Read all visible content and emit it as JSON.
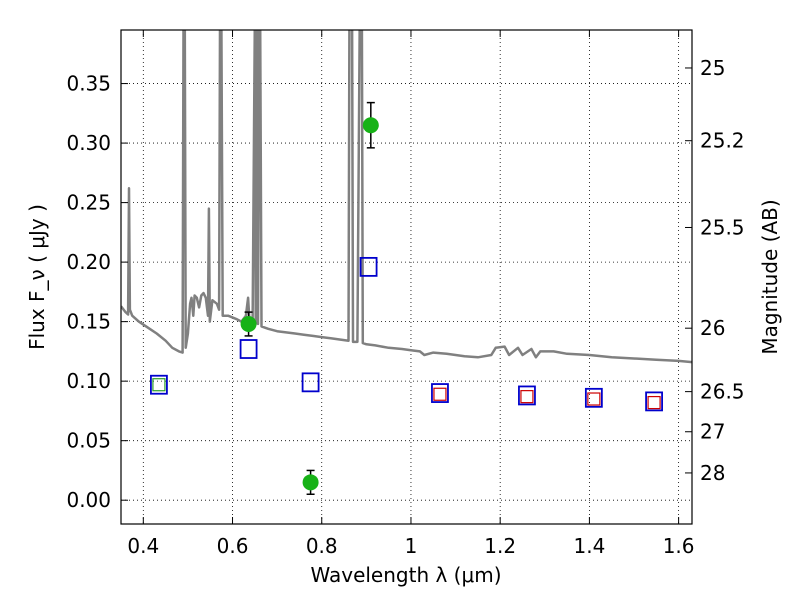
{
  "chart_data": {
    "type": "scatter",
    "xlabel": "Wavelength  λ (μm)",
    "ylabel": "Flux  F_ν  ( μJy )",
    "ylabel_right": "Magnitude (AB)",
    "xlim": [
      0.35,
      1.63
    ],
    "ylim": [
      -0.02,
      0.395
    ],
    "grid": true,
    "x_ticks": [
      0.4,
      0.6,
      0.8,
      1.0,
      1.2,
      1.4,
      1.6
    ],
    "x_tick_labels": [
      "0.4",
      "0.6",
      "0.8",
      "1",
      "1.2",
      "1.4",
      "1.6"
    ],
    "y_ticks": [
      0.0,
      0.05,
      0.1,
      0.15,
      0.2,
      0.25,
      0.3,
      0.35
    ],
    "y_tick_labels": [
      "0.00",
      "0.05",
      "0.10",
      "0.15",
      "0.20",
      "0.25",
      "0.30",
      "0.35"
    ],
    "right_ticks": [
      {
        "label": "25",
        "flux": 0.3631
      },
      {
        "label": "25.2",
        "flux": 0.302
      },
      {
        "label": "25.5",
        "flux": 0.2291
      },
      {
        "label": "26",
        "flux": 0.1445
      },
      {
        "label": "26.5",
        "flux": 0.0912
      },
      {
        "label": "27",
        "flux": 0.0575
      },
      {
        "label": "28",
        "flux": 0.0229
      }
    ],
    "series": [
      {
        "kind": "spectrum",
        "color": "#808080",
        "points": [
          [
            0.35,
            0.163
          ],
          [
            0.36,
            0.158
          ],
          [
            0.366,
            0.156
          ],
          [
            0.368,
            0.262
          ],
          [
            0.37,
            0.16
          ],
          [
            0.375,
            0.155
          ],
          [
            0.39,
            0.15
          ],
          [
            0.41,
            0.145
          ],
          [
            0.43,
            0.14
          ],
          [
            0.45,
            0.134
          ],
          [
            0.465,
            0.128
          ],
          [
            0.48,
            0.125
          ],
          [
            0.488,
            0.124
          ],
          [
            0.49,
            0.4
          ],
          [
            0.493,
            0.4
          ],
          [
            0.495,
            0.128
          ],
          [
            0.5,
            0.14
          ],
          [
            0.505,
            0.165
          ],
          [
            0.508,
            0.17
          ],
          [
            0.512,
            0.155
          ],
          [
            0.515,
            0.172
          ],
          [
            0.52,
            0.17
          ],
          [
            0.525,
            0.162
          ],
          [
            0.53,
            0.172
          ],
          [
            0.535,
            0.174
          ],
          [
            0.54,
            0.17
          ],
          [
            0.545,
            0.155
          ],
          [
            0.547,
            0.245
          ],
          [
            0.549,
            0.15
          ],
          [
            0.555,
            0.168
          ],
          [
            0.565,
            0.165
          ],
          [
            0.57,
            0.16
          ],
          [
            0.572,
            0.4
          ],
          [
            0.575,
            0.4
          ],
          [
            0.578,
            0.155
          ],
          [
            0.59,
            0.155
          ],
          [
            0.61,
            0.152
          ],
          [
            0.62,
            0.15
          ],
          [
            0.63,
            0.155
          ],
          [
            0.635,
            0.17
          ],
          [
            0.638,
            0.15
          ],
          [
            0.645,
            0.148
          ],
          [
            0.65,
            0.4
          ],
          [
            0.652,
            0.148
          ],
          [
            0.655,
            0.4
          ],
          [
            0.657,
            0.148
          ],
          [
            0.66,
            0.4
          ],
          [
            0.662,
            0.4
          ],
          [
            0.665,
            0.146
          ],
          [
            0.68,
            0.144
          ],
          [
            0.7,
            0.142
          ],
          [
            0.72,
            0.141
          ],
          [
            0.74,
            0.14
          ],
          [
            0.76,
            0.139
          ],
          [
            0.78,
            0.138
          ],
          [
            0.8,
            0.137
          ],
          [
            0.82,
            0.136
          ],
          [
            0.84,
            0.135
          ],
          [
            0.86,
            0.134
          ],
          [
            0.862,
            0.4
          ],
          [
            0.868,
            0.4
          ],
          [
            0.87,
            0.133
          ],
          [
            0.88,
            0.133
          ],
          [
            0.885,
            0.4
          ],
          [
            0.89,
            0.4
          ],
          [
            0.892,
            0.132
          ],
          [
            0.9,
            0.131
          ],
          [
            0.92,
            0.13
          ],
          [
            0.95,
            0.128
          ],
          [
            0.98,
            0.127
          ],
          [
            1.0,
            0.126
          ],
          [
            1.02,
            0.125
          ],
          [
            1.03,
            0.122
          ],
          [
            1.05,
            0.124
          ],
          [
            1.08,
            0.123
          ],
          [
            1.1,
            0.122
          ],
          [
            1.12,
            0.121
          ],
          [
            1.15,
            0.12
          ],
          [
            1.18,
            0.122
          ],
          [
            1.19,
            0.128
          ],
          [
            1.21,
            0.129
          ],
          [
            1.22,
            0.122
          ],
          [
            1.24,
            0.128
          ],
          [
            1.25,
            0.122
          ],
          [
            1.27,
            0.127
          ],
          [
            1.28,
            0.12
          ],
          [
            1.29,
            0.125
          ],
          [
            1.32,
            0.125
          ],
          [
            1.35,
            0.123
          ],
          [
            1.4,
            0.122
          ],
          [
            1.45,
            0.12
          ],
          [
            1.5,
            0.119
          ],
          [
            1.55,
            0.118
          ],
          [
            1.6,
            0.117
          ],
          [
            1.63,
            0.116
          ]
        ]
      },
      {
        "kind": "points_with_errors",
        "name": "",
        "color": "#17b217",
        "points": [
          {
            "x": 0.636,
            "y": 0.148,
            "err": 0.01
          },
          {
            "x": 0.775,
            "y": 0.015,
            "err": 0.01
          },
          {
            "x": 0.91,
            "y": 0.315,
            "err": 0.019
          }
        ]
      },
      {
        "kind": "open_squares",
        "name": "",
        "color": "#0000cc",
        "points": [
          {
            "x": 0.435,
            "y": 0.097
          },
          {
            "x": 0.636,
            "y": 0.127
          },
          {
            "x": 0.775,
            "y": 0.099
          },
          {
            "x": 0.905,
            "y": 0.196
          },
          {
            "x": 1.065,
            "y": 0.09
          },
          {
            "x": 1.26,
            "y": 0.088
          },
          {
            "x": 1.41,
            "y": 0.086
          },
          {
            "x": 1.545,
            "y": 0.083
          }
        ]
      },
      {
        "kind": "small_open_squares",
        "name": "",
        "color": "#cc0000",
        "points": [
          {
            "x": 1.065,
            "y": 0.089
          },
          {
            "x": 1.26,
            "y": 0.087
          },
          {
            "x": 1.41,
            "y": 0.085
          },
          {
            "x": 1.545,
            "y": 0.082
          }
        ]
      },
      {
        "kind": "small_open_squares",
        "name": "",
        "color": "#2a9d2a",
        "points": [
          {
            "x": 0.435,
            "y": 0.097
          }
        ]
      }
    ]
  }
}
